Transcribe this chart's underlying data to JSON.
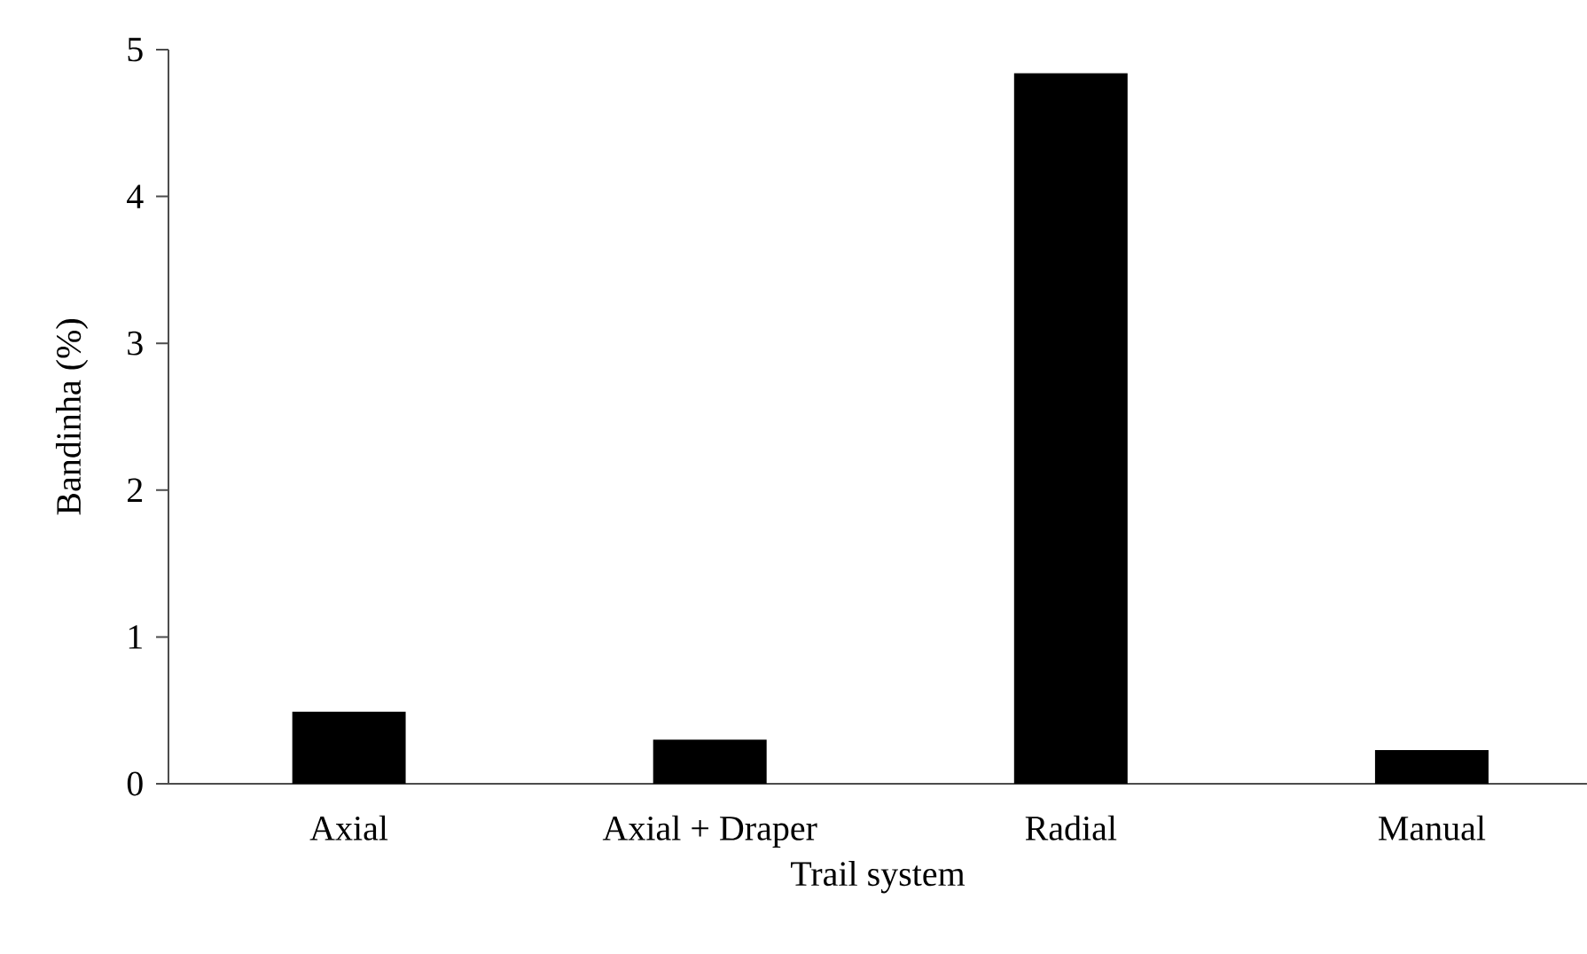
{
  "chart_data": {
    "type": "bar",
    "xlabel": "Trail system",
    "ylabel": "Bandinha (%)",
    "categories": [
      "Axial",
      "Axial + Draper",
      "Radial",
      "Manual"
    ],
    "values": [
      0.49,
      0.3,
      4.84,
      0.23
    ],
    "color": "#000000",
    "ylim": [
      0,
      5
    ],
    "yticks": [
      0,
      1,
      2,
      3,
      4,
      5
    ],
    "grid": false
  }
}
